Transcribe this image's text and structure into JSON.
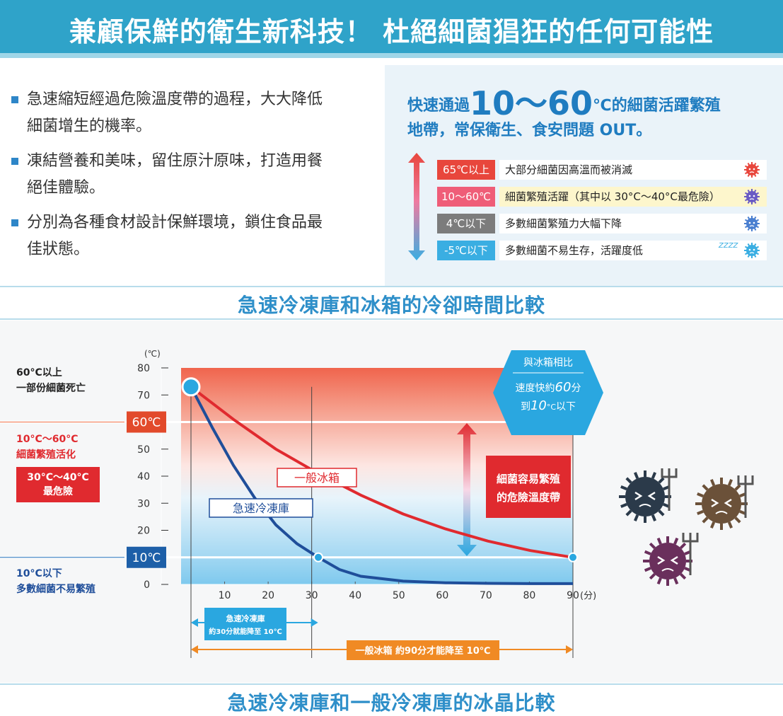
{
  "header": {
    "title": "兼顧保鮮的衛生新科技！ 杜絕細菌猖狂的任何可能性"
  },
  "bullets": [
    {
      "line1": "急速縮短經過危險溫度帶的過程，大大降低",
      "line2": "細菌增生的機率。"
    },
    {
      "line1": "凍結營養和美味，留住原汁原味，打造用餐",
      "line2": "絕佳體驗。"
    },
    {
      "line1": "分別為各種食材設計保鮮環境，鎖住食品最",
      "line2": "佳狀態。"
    }
  ],
  "zone_panel": {
    "title_pre": "快速通過",
    "title_big": "10～60",
    "title_post": "℃的細菌活躍繁殖",
    "title_line2": "地帶，常保衛生、食安問題 OUT。",
    "zones": [
      {
        "tag": "65℃以上",
        "text": "大部分細菌因高溫而被消滅",
        "color": "#e8463c",
        "bg": "#ffffff"
      },
      {
        "tag": "10～60℃",
        "text": "細菌繁殖活躍（其中以 30°C～40°C最危險）",
        "color": "#ef5d78",
        "bg": "#fdf6cc"
      },
      {
        "tag": "4℃以下",
        "text": "多數細菌繁殖力大幅下降",
        "color": "#7c7c7c",
        "bg": "#ffffff"
      },
      {
        "tag": "-5℃以下",
        "text": "多數細菌不易生存，活躍度低",
        "color": "#3aaee2",
        "bg": "#ffffff"
      }
    ],
    "zzz": "ZZZZ"
  },
  "section1": {
    "title": "急速冷凍庫和冰箱的冷卻時間比較"
  },
  "section2": {
    "title": "急速冷凍庫和一般冷凍庫的冰晶比較"
  },
  "side_labels": {
    "above60_1": "60°C以上",
    "above60_2": "一部份細菌死亡",
    "mid_1": "10°C～60°C",
    "mid_2": "細菌繁殖活化",
    "danger_1": "30°C～40°C",
    "danger_2": "最危險",
    "below10_1": "10°C以下",
    "below10_2": "多數細菌不易繁殖"
  },
  "chart_data": {
    "type": "line",
    "ylabel": "(℃)",
    "xlabel": "(分)",
    "xlim": [
      0,
      90
    ],
    "ylim": [
      0,
      80
    ],
    "xticks": [
      10,
      20,
      30,
      40,
      50,
      60,
      70,
      80,
      90
    ],
    "yticks": [
      0,
      20,
      30,
      40,
      50,
      70,
      80
    ],
    "threshold_labels": [
      "60℃",
      "10℃"
    ],
    "series": [
      {
        "name": "急速冷凍庫",
        "color": "#1f4e9a",
        "points": [
          [
            0,
            73
          ],
          [
            5,
            58
          ],
          [
            10,
            44
          ],
          [
            15,
            32
          ],
          [
            20,
            22
          ],
          [
            25,
            15
          ],
          [
            30,
            10
          ],
          [
            35,
            5.5
          ],
          [
            40,
            3
          ],
          [
            50,
            1.2
          ],
          [
            60,
            0.6
          ],
          [
            70,
            0.4
          ],
          [
            80,
            0.3
          ],
          [
            90,
            0.3
          ]
        ]
      },
      {
        "name": "一般冰箱",
        "color": "#e02a2f",
        "points": [
          [
            0,
            73
          ],
          [
            10,
            61
          ],
          [
            20,
            50
          ],
          [
            30,
            41
          ],
          [
            40,
            33
          ],
          [
            50,
            26
          ],
          [
            60,
            20.5
          ],
          [
            70,
            16
          ],
          [
            80,
            12.5
          ],
          [
            90,
            10
          ]
        ]
      }
    ],
    "callout": {
      "line1": "與冰箱相比",
      "line2_pre": "速度快約",
      "line2_num": "60",
      "line2_unit": "分",
      "line3_pre": "到",
      "line3_num": "10",
      "line3_unit": "°C",
      "line3_post": "以下"
    },
    "danger_band_label": {
      "line1": "細菌容易繁殖",
      "line2": "的危險溫度帶"
    },
    "span_fast": {
      "line1": "急速冷凍庫",
      "line2": "約30分就能降至 10℃"
    },
    "span_normal": {
      "text": "一般冰箱 約90分才能降至 10℃"
    }
  }
}
